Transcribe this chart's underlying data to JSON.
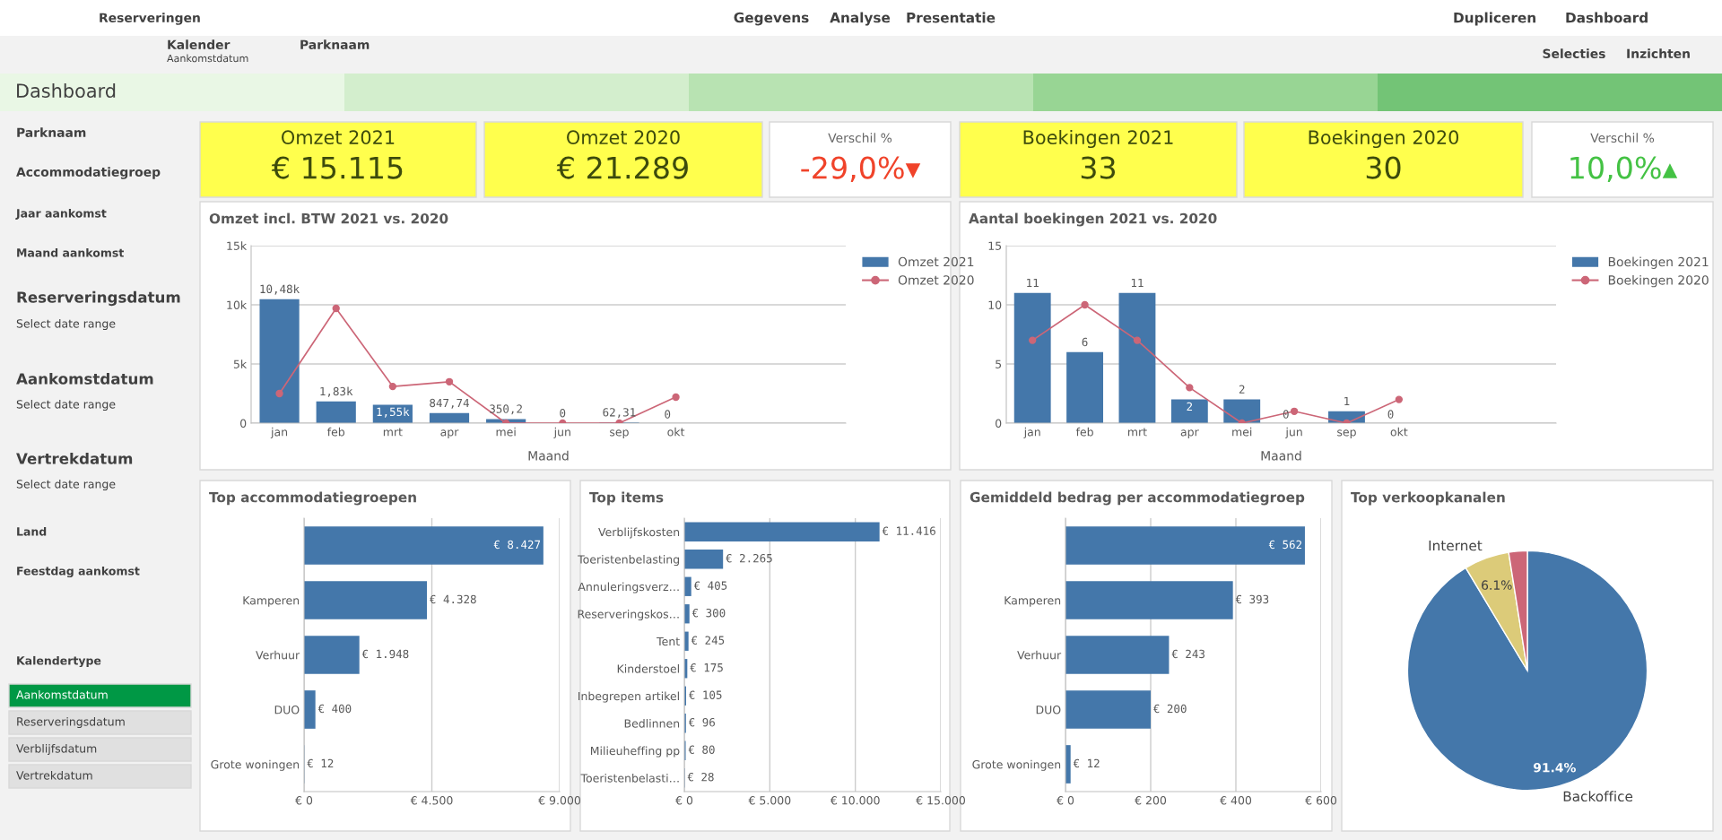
{
  "chart_data": [
    {
      "type": "other",
      "title": "Dashboard",
      "annotations": [
        "Reserveringen",
        "Gegevens",
        "Analyse",
        "Presentatie",
        "Dupliceren",
        "Dashboard",
        "Kalender",
        "Aankomstdatum",
        "Parknaam",
        "Selecties",
        "Inzichten"
      ]
    },
    {
      "type": "other",
      "annotations": [
        "Parknaam",
        "Accommodatiegroep",
        "Jaar aankomst",
        "Maand aankomst",
        "Reserveringsdatum",
        "Select date range",
        "Aankomstdatum",
        "Select date range",
        "Vertrekdatum",
        "Select date range",
        "Land",
        "Feestdag aankomst",
        "Kalendertype",
        "Aankomstdatum",
        "Reserveringsdatum",
        "Verblijfsdatum",
        "Vertrekdatum"
      ]
    },
    {
      "type": "other",
      "annotations": [
        "Omzet 2021",
        "€ 15.115",
        "Omzet 2020",
        "€ 21.289",
        "Verschil %",
        "-29,0%▾",
        "Boekingen 2021",
        "33",
        "Boekingen 2020",
        "30",
        "Verschil %",
        "10,0%▴"
      ]
    },
    {
      "type": "bar",
      "title": "Omzet incl. BTW 2021 vs. 2020",
      "xlabel": "Maand",
      "categories": [
        "jan",
        "feb",
        "mrt",
        "apr",
        "mei",
        "jun",
        "sep",
        "okt"
      ],
      "series": [
        {
          "name": "Omzet 2021",
          "type": "bar",
          "color": "#4477aa",
          "values": [
            10480,
            1830,
            1550,
            847.74,
            350.2,
            0,
            62.31,
            0
          ],
          "value_labels": [
            "10,48k",
            "1,83k",
            "1,55k",
            "847,74",
            "350,2",
            "0",
            "62,31",
            "0"
          ]
        },
        {
          "name": "Omzet 2020",
          "type": "line",
          "color": "#cc6677",
          "values": [
            2500,
            9700,
            3100,
            3500,
            0,
            0,
            0,
            2200
          ]
        }
      ],
      "ylim": [
        0,
        15000
      ],
      "yticks": [
        {
          "value": 0,
          "label": "0"
        },
        {
          "value": 5000,
          "label": "5k"
        },
        {
          "value": 10000,
          "label": "10k"
        },
        {
          "value": 15000,
          "label": "15k"
        }
      ],
      "grid": "y",
      "legend": "right",
      "marker": "circle"
    },
    {
      "type": "bar",
      "title": "Aantal boekingen 2021 vs. 2020",
      "xlabel": "Maand",
      "categories": [
        "jan",
        "feb",
        "mrt",
        "apr",
        "mei",
        "jun",
        "sep",
        "okt"
      ],
      "series": [
        {
          "name": "Boekingen 2021",
          "type": "bar",
          "color": "#4477aa",
          "values": [
            11,
            6,
            11,
            2,
            2,
            0,
            1,
            0
          ],
          "value_labels": [
            "11",
            "6",
            "11",
            "2",
            "2",
            "0",
            "1",
            "0"
          ]
        },
        {
          "name": "Boekingen 2020",
          "type": "line",
          "color": "#cc6677",
          "values": [
            7,
            10,
            7,
            3,
            0,
            1,
            0,
            2
          ]
        }
      ],
      "ylim": [
        0,
        15
      ],
      "yticks": [
        0,
        5,
        10,
        15
      ],
      "grid": "y",
      "legend": "right",
      "marker": "circle"
    },
    {
      "type": "bar",
      "orientation": "horizontal",
      "title": "Top accommodatiegroepen",
      "categories": [
        null,
        "Kamperen",
        "Verhuur",
        "DUO",
        "Grote woningen"
      ],
      "color": "#4477aa",
      "values": [
        8427,
        4328,
        1948,
        400,
        12
      ],
      "value_labels": [
        "€ 8.427",
        "€ 4.328",
        "€ 1.948",
        "€ 400",
        "€ 12"
      ],
      "xlim": [
        0,
        9000
      ],
      "xticks": [
        {
          "value": 0,
          "label": "€ 0"
        },
        {
          "value": 4500,
          "label": "€ 4.500"
        },
        {
          "value": 9000,
          "label": "€ 9.000"
        }
      ],
      "grid": "x"
    },
    {
      "type": "bar",
      "orientation": "horizontal",
      "title": "Top items",
      "categories": [
        "Verblijfskosten",
        "Toeristenbelasting",
        "Annuleringsverz…",
        "Reserveringskos…",
        "Tent",
        "Kinderstoel",
        "Inbegrepen artikel",
        "Bedlinnen",
        "Milieuheffing pp",
        "Toeristenbelasti…"
      ],
      "color": "#4477aa",
      "values": [
        11416,
        2265,
        405,
        300,
        245,
        175,
        105,
        96,
        80,
        28
      ],
      "value_labels": [
        "€ 11.416",
        "€ 2.265",
        "€ 405",
        "€ 300",
        "€ 245",
        "€ 175",
        "€ 105",
        "€ 96",
        "€ 80",
        "€ 28"
      ],
      "xlim": [
        0,
        15000
      ],
      "xticks": [
        {
          "value": 0,
          "label": "€ 0"
        },
        {
          "value": 5000,
          "label": "€ 5.000"
        },
        {
          "value": 10000,
          "label": "€ 10.000"
        },
        {
          "value": 15000,
          "label": "€ 15.000"
        }
      ],
      "grid": "x"
    },
    {
      "type": "bar",
      "orientation": "horizontal",
      "title": "Gemiddeld bedrag per accommodatiegroep",
      "categories": [
        null,
        "Kamperen",
        "Verhuur",
        "DUO",
        "Grote woningen"
      ],
      "color": "#4477aa",
      "values": [
        562,
        393,
        243,
        200,
        12
      ],
      "value_labels": [
        "€ 562",
        "€ 393",
        "€ 243",
        "€ 200",
        "€ 12"
      ],
      "xlim": [
        0,
        600
      ],
      "xticks": [
        {
          "value": 0,
          "label": "€ 0"
        },
        {
          "value": 200,
          "label": "€ 200"
        },
        {
          "value": 400,
          "label": "€ 400"
        },
        {
          "value": 600,
          "label": "€ 600"
        }
      ],
      "grid": "x"
    },
    {
      "type": "pie",
      "title": "Top verkoopkanalen",
      "categories": [
        "Backoffice",
        "Internet",
        null
      ],
      "values": [
        91.4,
        6.1,
        2.5
      ],
      "colors": [
        "#4477aa",
        "#dccb79",
        "#cc6677"
      ],
      "value_labels": [
        "91.4%",
        "6.1%",
        null
      ]
    }
  ]
}
